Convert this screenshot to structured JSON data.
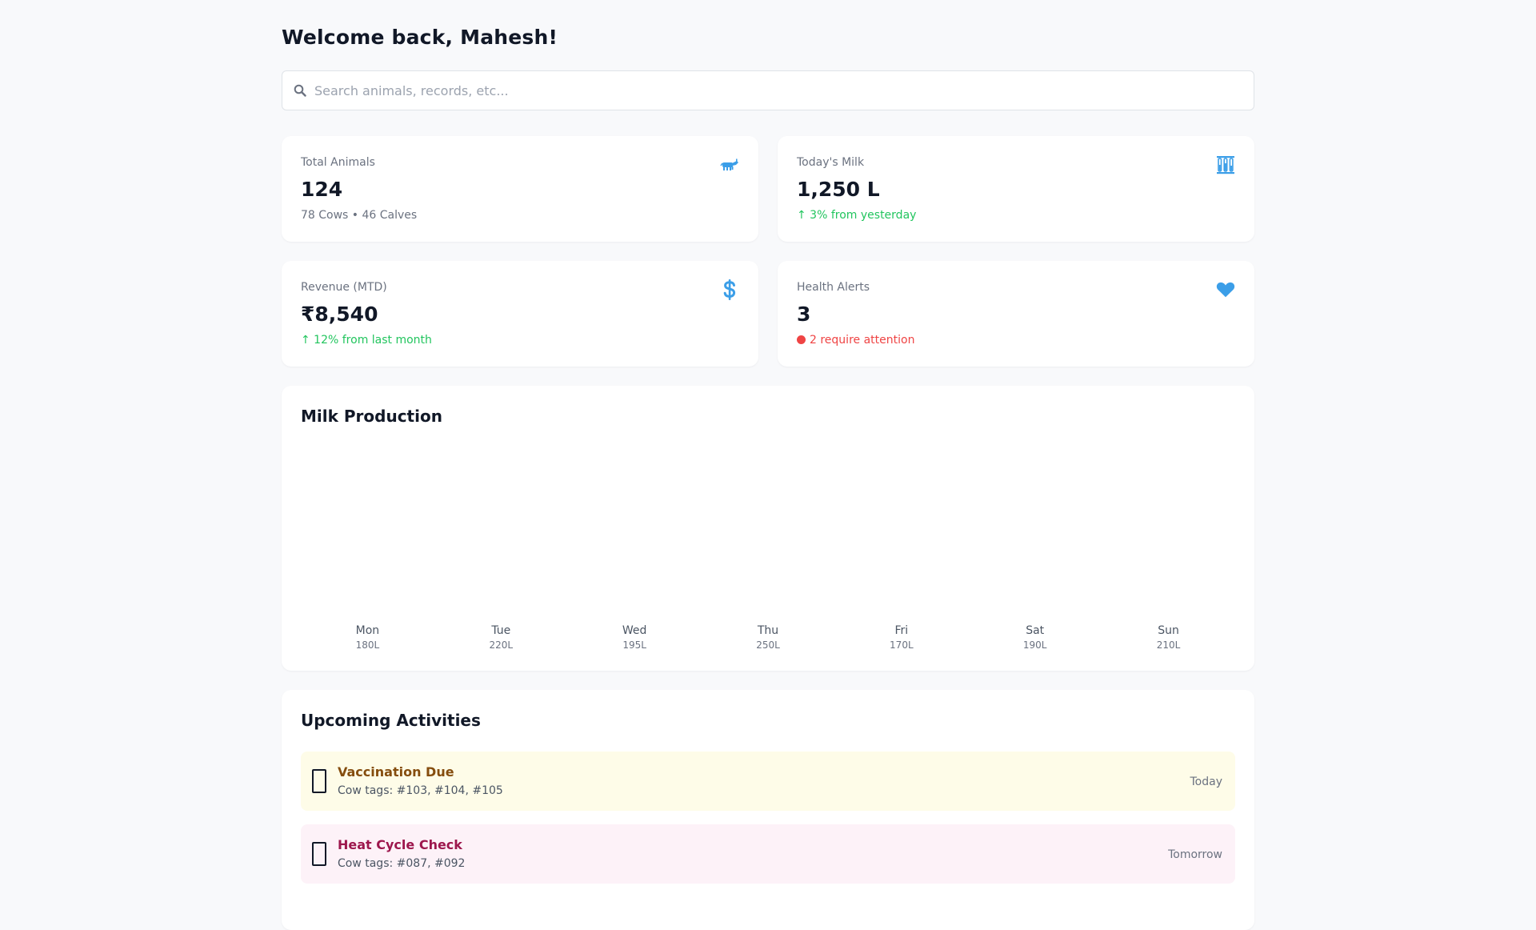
{
  "header": {
    "welcome": "Welcome back, Mahesh!"
  },
  "search": {
    "placeholder": "Search animals, records, etc...",
    "value": ""
  },
  "stats": [
    {
      "label": "Total Animals",
      "value": "124",
      "sub": "78 Cows • 46 Calves",
      "icon": "cow-icon"
    },
    {
      "label": "Today's Milk",
      "value": "1,250 L",
      "sub": "↑ 3% from yesterday",
      "icon": "milk-icon"
    },
    {
      "label": "Revenue (MTD)",
      "value": "₹8,540",
      "sub": "↑ 12% from last month",
      "icon": "dollar-icon"
    },
    {
      "label": "Health Alerts",
      "value": "3",
      "sub": "2 require attention",
      "icon": "heart-icon"
    }
  ],
  "colors": {
    "accent_blue": "#3b9ee8",
    "positive_green": "#22c55e",
    "alert_red": "#ef4444"
  },
  "milk_chart": {
    "title": "Milk Production"
  },
  "chart_data": {
    "type": "bar",
    "title": "Milk Production",
    "categories": [
      "Mon",
      "Tue",
      "Wed",
      "Thu",
      "Fri",
      "Sat",
      "Sun"
    ],
    "values": [
      180,
      220,
      195,
      250,
      170,
      190,
      210
    ],
    "value_labels": [
      "180L",
      "220L",
      "195L",
      "250L",
      "170L",
      "190L",
      "210L"
    ],
    "xlabel": "",
    "ylabel": ""
  },
  "activities": {
    "title": "Upcoming Activities",
    "items": [
      {
        "title": "Vaccination Due",
        "sub": "Cow tags: #103, #104, #105",
        "when": "Today"
      },
      {
        "title": "Heat Cycle Check",
        "sub": "Cow tags: #087, #092",
        "when": "Tomorrow"
      }
    ]
  }
}
